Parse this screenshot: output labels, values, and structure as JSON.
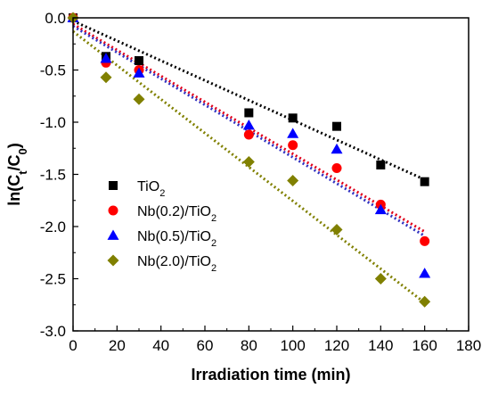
{
  "chart_data": {
    "type": "scatter",
    "xlabel": "Irradiation time (min)",
    "ylabel_parts": {
      "pre": "ln(C",
      "sub1": "t",
      "mid": "/C",
      "sub2": "0",
      "post": ")"
    },
    "xlim": [
      0,
      180
    ],
    "ylim": [
      -3.0,
      0.0
    ],
    "x_ticks": [
      0,
      20,
      40,
      60,
      80,
      100,
      120,
      140,
      160,
      180
    ],
    "y_ticks": [
      0.0,
      -0.5,
      -1.0,
      -1.5,
      -2.0,
      -2.5,
      -3.0
    ],
    "y_tick_labels": [
      "0.0",
      "-0.5",
      "-1.0",
      "-1.5",
      "-2.0",
      "-2.5",
      "-3.0"
    ],
    "grid": false,
    "legend_position": "center-left",
    "series": [
      {
        "name": "TiO2",
        "label_parts": {
          "pre": "TiO",
          "sub": "2",
          "post": ""
        },
        "marker": "square",
        "color": "#000000",
        "fit_color": "#000000",
        "x": [
          0,
          15,
          30,
          80,
          100,
          120,
          140,
          160
        ],
        "y": [
          0.0,
          -0.37,
          -0.41,
          -0.91,
          -0.96,
          -1.04,
          -1.41,
          -1.57
        ],
        "fit": {
          "x": [
            0,
            160
          ],
          "y": [
            -0.03,
            -1.55
          ]
        }
      },
      {
        "name": "Nb(0.2)/TiO2",
        "label_parts": {
          "pre": "Nb(0.2)/TiO",
          "sub": "2",
          "post": ""
        },
        "marker": "circle",
        "color": "#ff0000",
        "fit_color": "#e0001a",
        "x": [
          0,
          15,
          30,
          80,
          100,
          120,
          140,
          160
        ],
        "y": [
          0.0,
          -0.43,
          -0.5,
          -1.12,
          -1.22,
          -1.44,
          -1.79,
          -2.14
        ],
        "fit": {
          "x": [
            0,
            160
          ],
          "y": [
            -0.06,
            -2.05
          ]
        }
      },
      {
        "name": "Nb(0.5)/TiO2",
        "label_parts": {
          "pre": "Nb(0.5)/TiO",
          "sub": "2",
          "post": ""
        },
        "marker": "triangle",
        "color": "#0000ff",
        "fit_color": "#3030c0",
        "x": [
          0,
          15,
          30,
          80,
          100,
          120,
          140,
          160
        ],
        "y": [
          0.0,
          -0.39,
          -0.53,
          -1.03,
          -1.11,
          -1.26,
          -1.84,
          -2.45
        ],
        "fit": {
          "x": [
            0,
            160
          ],
          "y": [
            -0.08,
            -2.09
          ]
        }
      },
      {
        "name": "Nb(2.0)/TiO2",
        "label_parts": {
          "pre": "Nb(2.0)/TiO",
          "sub": "2",
          "post": ""
        },
        "marker": "diamond",
        "color": "#808000",
        "fit_color": "#808000",
        "x": [
          0,
          15,
          30,
          80,
          100,
          120,
          140,
          160
        ],
        "y": [
          0.0,
          -0.57,
          -0.78,
          -1.38,
          -1.56,
          -2.03,
          -2.5,
          -2.72
        ],
        "fit": {
          "x": [
            0,
            160
          ],
          "y": [
            -0.13,
            -2.73
          ]
        }
      }
    ]
  }
}
